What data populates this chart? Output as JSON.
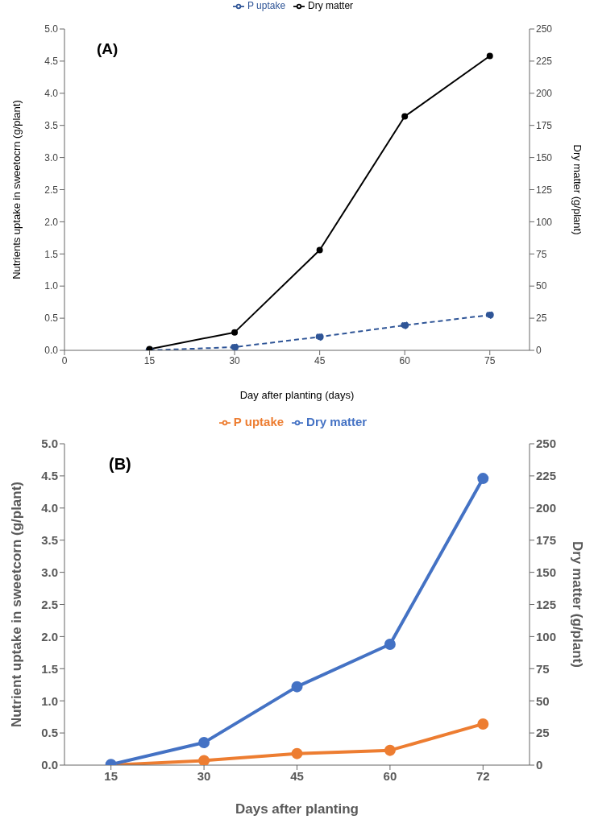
{
  "chart_data": [
    {
      "type": "line",
      "annotations": [
        "(A)"
      ],
      "xlabel": "Day after planting (days)",
      "ylabel": "Nutrients uptake in sweetocrn (g/plant)",
      "y2label": "Dry matter (g/plant)",
      "x": [
        15,
        30,
        45,
        60,
        75
      ],
      "xlim": [
        0,
        82
      ],
      "xticks": [
        0,
        15,
        30,
        45,
        60,
        75
      ],
      "ylim": [
        0,
        5
      ],
      "yticks": [
        {
          "value": 0,
          "label": "0.0"
        },
        {
          "value": 0.5,
          "label": "0.5"
        },
        {
          "value": 1,
          "label": "1.0"
        },
        {
          "value": 1.5,
          "label": "1.5"
        },
        {
          "value": 2,
          "label": "2.0"
        },
        {
          "value": 2.5,
          "label": "2.5"
        },
        {
          "value": 3,
          "label": "3.0"
        },
        {
          "value": 3.5,
          "label": "3.5"
        },
        {
          "value": 4,
          "label": "4.0"
        },
        {
          "value": 4.5,
          "label": "4.5"
        },
        {
          "value": 5,
          "label": "5.0"
        }
      ],
      "y2lim": [
        0,
        250
      ],
      "y2ticks": [
        0,
        25,
        50,
        75,
        100,
        125,
        150,
        175,
        200,
        225,
        250
      ],
      "legend": "top",
      "marker": "circle",
      "series": [
        {
          "name": "P uptake",
          "color": "#2f5597",
          "line_style": "dashed",
          "values": [
            0,
            0.05,
            0.21,
            0.39,
            0.55
          ]
        },
        {
          "name": "Dry matter",
          "color": "#000000",
          "line_style": "solid",
          "axis": "y2",
          "values": [
            1,
            14,
            78,
            182,
            229
          ]
        }
      ]
    },
    {
      "type": "line",
      "annotations": [
        "(B)"
      ],
      "xlabel": "Days after planting",
      "ylabel": "Nutrient uptake in sweetcorn (g/plant)",
      "y2label": "Dry matter (g/plant)",
      "categories": [
        "15",
        "30",
        "45",
        "60",
        "72"
      ],
      "ylim": [
        0,
        5
      ],
      "yticks": [
        {
          "value": 0,
          "label": "0.0"
        },
        {
          "value": 0.5,
          "label": "0.5"
        },
        {
          "value": 1,
          "label": "1.0"
        },
        {
          "value": 1.5,
          "label": "1.5"
        },
        {
          "value": 2,
          "label": "2.0"
        },
        {
          "value": 2.5,
          "label": "2.5"
        },
        {
          "value": 3,
          "label": "3.0"
        },
        {
          "value": 3.5,
          "label": "3.5"
        },
        {
          "value": 4,
          "label": "4.0"
        },
        {
          "value": 4.5,
          "label": "4.5"
        },
        {
          "value": 5,
          "label": "5.0"
        }
      ],
      "y2lim": [
        0,
        250
      ],
      "y2ticks": [
        0,
        25,
        50,
        75,
        100,
        125,
        150,
        175,
        200,
        225,
        250
      ],
      "legend": "top",
      "marker": "circle",
      "series": [
        {
          "name": "P uptake",
          "color": "#ed7d31",
          "line_style": "solid",
          "values": [
            0,
            0.07,
            0.18,
            0.23,
            0.64
          ]
        },
        {
          "name": "Dry matter",
          "color": "#4472c4",
          "line_style": "solid",
          "axis": "y2",
          "values": [
            0.5,
            17.5,
            61,
            94,
            223
          ]
        }
      ]
    }
  ]
}
